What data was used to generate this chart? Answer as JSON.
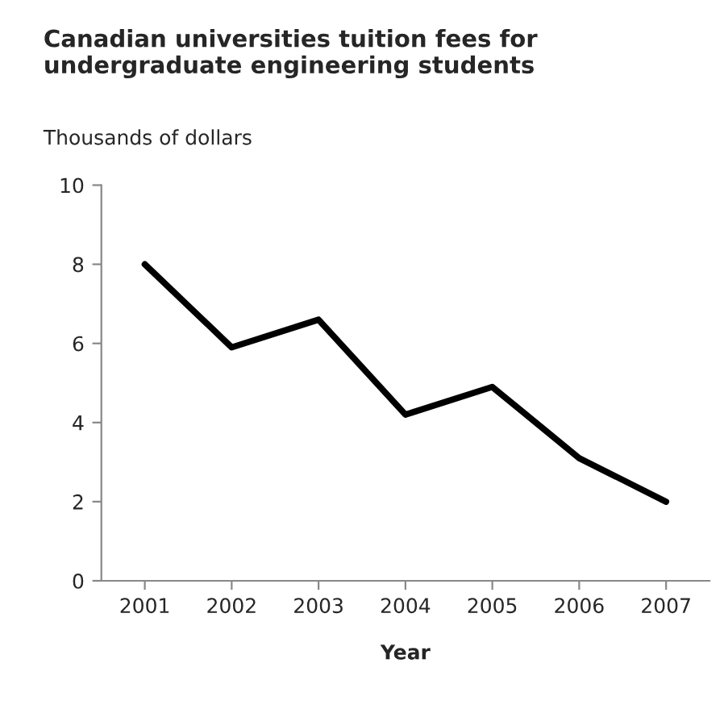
{
  "chart_data": {
    "type": "line",
    "title": "Canadian universities tuition fees for undergraduate engineering students",
    "xlabel": "Year",
    "ylabel": "Thousands of dollars",
    "categories": [
      "2001",
      "2002",
      "2003",
      "2004",
      "2005",
      "2006",
      "2007"
    ],
    "series": [
      {
        "color": "#000000",
        "values": [
          8.0,
          5.9,
          6.6,
          4.2,
          4.9,
          3.1,
          2.0
        ]
      }
    ],
    "ylim": [
      0,
      10
    ],
    "yticks": [
      0,
      2,
      4,
      6,
      8,
      10
    ],
    "grid": false,
    "marker": "none",
    "line_style": "solid"
  }
}
